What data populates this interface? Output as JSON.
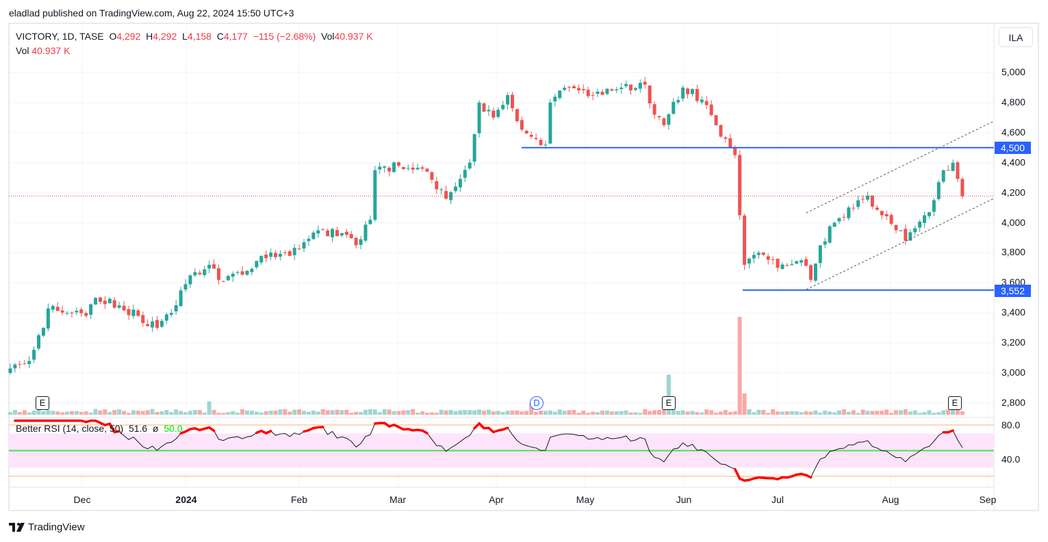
{
  "published": "eladlad published on TradingView.com, Aug 22, 2024 15:50 UTC+3",
  "legend": {
    "symbol": "VICTORY, 1D, TASE",
    "o_label": "O",
    "o": "4,292",
    "h_label": "H",
    "h": "4,292",
    "l_label": "L",
    "l": "4,158",
    "c_label": "C",
    "c": "4,177",
    "change": "−115 (−2.68%)",
    "vol_label": "Vol",
    "vol": "40.937 K"
  },
  "vol_pane": {
    "label": "Vol",
    "value": "40.937 K"
  },
  "currency": "ILA",
  "price_labels": [
    "5,000",
    "4,800",
    "4,600",
    "4,400",
    "4,200",
    "4,000",
    "3,800",
    "3,600",
    "3,400",
    "3,200",
    "3,000",
    "2,800"
  ],
  "price_tags": [
    "4,500",
    "3,552"
  ],
  "time_labels": [
    {
      "t": "Dec",
      "bold": false
    },
    {
      "t": "2024",
      "bold": true
    },
    {
      "t": "Feb",
      "bold": false
    },
    {
      "t": "Mar",
      "bold": false
    },
    {
      "t": "Apr",
      "bold": false
    },
    {
      "t": "May",
      "bold": false
    },
    {
      "t": "Jun",
      "bold": false
    },
    {
      "t": "Jul",
      "bold": false
    },
    {
      "t": "Aug",
      "bold": false
    },
    {
      "t": "Sep",
      "bold": false
    }
  ],
  "rsi": {
    "title": "Better RSI (14, close, 50)",
    "value": "51.6",
    "sym": "ø",
    "mid": "50.0",
    "levels": [
      "80.0",
      "40.0"
    ]
  },
  "markers": [
    "E",
    "D",
    "E",
    "E"
  ],
  "brand": "TradingView",
  "colors": {
    "up": "#26a69a",
    "down": "#ef5350",
    "line": "#2962ff"
  },
  "chart_data": {
    "type": "candlestick",
    "symbol": "VICTORY",
    "ylim": [
      2750,
      5100
    ],
    "last_close": 4177,
    "horizontal_levels": [
      4500,
      3552
    ],
    "waypoints": [
      [
        0,
        3030
      ],
      [
        4,
        3080
      ],
      [
        7,
        3300
      ],
      [
        8,
        3430
      ],
      [
        16,
        3380
      ],
      [
        18,
        3500
      ],
      [
        23,
        3450
      ],
      [
        27,
        3380
      ],
      [
        31,
        3300
      ],
      [
        34,
        3400
      ],
      [
        38,
        3650
      ],
      [
        42,
        3720
      ],
      [
        44,
        3620
      ],
      [
        50,
        3680
      ],
      [
        53,
        3780
      ],
      [
        59,
        3780
      ],
      [
        62,
        3870
      ],
      [
        65,
        3950
      ],
      [
        71,
        3920
      ],
      [
        73,
        3850
      ],
      [
        76,
        4020
      ],
      [
        77,
        4350
      ],
      [
        82,
        4380
      ],
      [
        88,
        4340
      ],
      [
        92,
        4160
      ],
      [
        97,
        4400
      ],
      [
        99,
        4800
      ],
      [
        102,
        4700
      ],
      [
        105,
        4850
      ],
      [
        108,
        4620
      ],
      [
        113,
        4520
      ],
      [
        114,
        4800
      ],
      [
        118,
        4900
      ],
      [
        123,
        4850
      ],
      [
        129,
        4900
      ],
      [
        134,
        4920
      ],
      [
        136,
        4720
      ],
      [
        138,
        4650
      ],
      [
        142,
        4900
      ],
      [
        146,
        4820
      ],
      [
        149,
        4650
      ],
      [
        152,
        4500
      ],
      [
        153,
        4450
      ],
      [
        154,
        4050
      ],
      [
        155,
        3720
      ],
      [
        158,
        3800
      ],
      [
        162,
        3700
      ],
      [
        167,
        3750
      ],
      [
        169,
        3620
      ],
      [
        171,
        3850
      ],
      [
        174,
        4000
      ],
      [
        179,
        4150
      ],
      [
        181,
        4180
      ],
      [
        184,
        4050
      ],
      [
        188,
        3950
      ],
      [
        189,
        3880
      ],
      [
        193,
        4050
      ],
      [
        195,
        4150
      ],
      [
        197,
        4350
      ],
      [
        199,
        4400
      ],
      [
        200,
        4292
      ],
      [
        201,
        4177
      ]
    ],
    "volume_spikes": [
      [
        42,
        3
      ],
      [
        110,
        2.5
      ],
      [
        139,
        9
      ],
      [
        154,
        22
      ],
      [
        155,
        4.8
      ],
      [
        200,
        2.5
      ]
    ]
  }
}
